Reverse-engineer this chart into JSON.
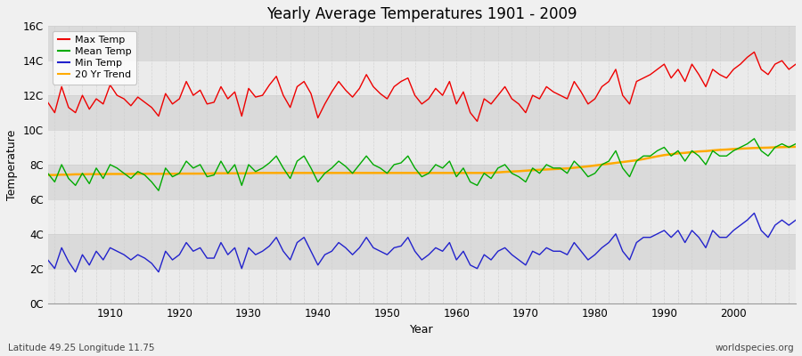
{
  "title": "Yearly Average Temperatures 1901 - 2009",
  "xlabel": "Year",
  "ylabel": "Temperature",
  "yticks": [
    "0C",
    "2C",
    "4C",
    "6C",
    "8C",
    "10C",
    "12C",
    "14C",
    "16C"
  ],
  "ytick_vals": [
    0,
    2,
    4,
    6,
    8,
    10,
    12,
    14,
    16
  ],
  "ylim": [
    0,
    16
  ],
  "xlim": [
    1901,
    2009
  ],
  "xticks": [
    1910,
    1920,
    1930,
    1940,
    1950,
    1960,
    1970,
    1980,
    1990,
    2000
  ],
  "color_max": "#ee0000",
  "color_mean": "#00aa00",
  "color_min": "#2222cc",
  "color_trend": "#ffaa00",
  "bg_light": "#ebebeb",
  "bg_dark": "#dadada",
  "bg_figure": "#f0f0f0",
  "grid_color": "#cccccc",
  "footnote_left": "Latitude 49.25 Longitude 11.75",
  "footnote_right": "worldspecies.org",
  "legend_labels": [
    "Max Temp",
    "Mean Temp",
    "Min Temp",
    "20 Yr Trend"
  ],
  "years": [
    1901,
    1902,
    1903,
    1904,
    1905,
    1906,
    1907,
    1908,
    1909,
    1910,
    1911,
    1912,
    1913,
    1914,
    1915,
    1916,
    1917,
    1918,
    1919,
    1920,
    1921,
    1922,
    1923,
    1924,
    1925,
    1926,
    1927,
    1928,
    1929,
    1930,
    1931,
    1932,
    1933,
    1934,
    1935,
    1936,
    1937,
    1938,
    1939,
    1940,
    1941,
    1942,
    1943,
    1944,
    1945,
    1946,
    1947,
    1948,
    1949,
    1950,
    1951,
    1952,
    1953,
    1954,
    1955,
    1956,
    1957,
    1958,
    1959,
    1960,
    1961,
    1962,
    1963,
    1964,
    1965,
    1966,
    1967,
    1968,
    1969,
    1970,
    1971,
    1972,
    1973,
    1974,
    1975,
    1976,
    1977,
    1978,
    1979,
    1980,
    1981,
    1982,
    1983,
    1984,
    1985,
    1986,
    1987,
    1988,
    1989,
    1990,
    1991,
    1992,
    1993,
    1994,
    1995,
    1996,
    1997,
    1998,
    1999,
    2000,
    2001,
    2002,
    2003,
    2004,
    2005,
    2006,
    2007,
    2008,
    2009
  ],
  "max_temp": [
    11.6,
    11.0,
    12.5,
    11.3,
    11.0,
    12.0,
    11.2,
    11.8,
    11.5,
    12.6,
    12.0,
    11.8,
    11.4,
    11.9,
    11.6,
    11.3,
    10.8,
    12.1,
    11.5,
    11.8,
    12.8,
    12.0,
    12.3,
    11.5,
    11.6,
    12.5,
    11.8,
    12.2,
    10.8,
    12.4,
    11.9,
    12.0,
    12.6,
    13.1,
    12.0,
    11.3,
    12.5,
    12.8,
    12.1,
    10.7,
    11.5,
    12.2,
    12.8,
    12.3,
    11.9,
    12.4,
    13.2,
    12.5,
    12.1,
    11.8,
    12.5,
    12.8,
    13.0,
    12.0,
    11.5,
    11.8,
    12.4,
    12.0,
    12.8,
    11.5,
    12.2,
    11.0,
    10.5,
    11.8,
    11.5,
    12.0,
    12.5,
    11.8,
    11.5,
    11.0,
    12.0,
    11.8,
    12.5,
    12.2,
    12.0,
    11.8,
    12.8,
    12.2,
    11.5,
    11.8,
    12.5,
    12.8,
    13.5,
    12.0,
    11.5,
    12.8,
    13.0,
    13.2,
    13.5,
    13.8,
    13.0,
    13.5,
    12.8,
    13.8,
    13.2,
    12.5,
    13.5,
    13.2,
    13.0,
    13.5,
    13.8,
    14.2,
    14.5,
    13.5,
    13.2,
    13.8,
    14.0,
    13.5,
    13.8
  ],
  "mean_temp": [
    7.5,
    7.0,
    8.0,
    7.2,
    6.8,
    7.5,
    6.9,
    7.8,
    7.2,
    8.0,
    7.8,
    7.5,
    7.2,
    7.6,
    7.4,
    7.0,
    6.5,
    7.8,
    7.3,
    7.5,
    8.2,
    7.8,
    8.0,
    7.3,
    7.4,
    8.2,
    7.5,
    8.0,
    6.8,
    8.0,
    7.6,
    7.8,
    8.1,
    8.5,
    7.8,
    7.2,
    8.2,
    8.5,
    7.8,
    7.0,
    7.5,
    7.8,
    8.2,
    7.9,
    7.5,
    8.0,
    8.5,
    8.0,
    7.8,
    7.5,
    8.0,
    8.1,
    8.5,
    7.8,
    7.3,
    7.5,
    8.0,
    7.8,
    8.2,
    7.3,
    7.8,
    7.0,
    6.8,
    7.5,
    7.2,
    7.8,
    8.0,
    7.5,
    7.3,
    7.0,
    7.8,
    7.5,
    8.0,
    7.8,
    7.8,
    7.5,
    8.2,
    7.8,
    7.3,
    7.5,
    8.0,
    8.2,
    8.8,
    7.8,
    7.3,
    8.2,
    8.5,
    8.5,
    8.8,
    9.0,
    8.5,
    8.8,
    8.2,
    8.8,
    8.5,
    8.0,
    8.8,
    8.5,
    8.5,
    8.8,
    9.0,
    9.2,
    9.5,
    8.8,
    8.5,
    9.0,
    9.2,
    9.0,
    9.2
  ],
  "min_temp": [
    2.5,
    2.0,
    3.2,
    2.4,
    1.8,
    2.8,
    2.2,
    3.0,
    2.5,
    3.2,
    3.0,
    2.8,
    2.5,
    2.8,
    2.6,
    2.3,
    1.8,
    3.0,
    2.5,
    2.8,
    3.5,
    3.0,
    3.2,
    2.6,
    2.6,
    3.5,
    2.8,
    3.2,
    2.0,
    3.2,
    2.8,
    3.0,
    3.3,
    3.8,
    3.0,
    2.5,
    3.5,
    3.8,
    3.0,
    2.2,
    2.8,
    3.0,
    3.5,
    3.2,
    2.8,
    3.2,
    3.8,
    3.2,
    3.0,
    2.8,
    3.2,
    3.3,
    3.8,
    3.0,
    2.5,
    2.8,
    3.2,
    3.0,
    3.5,
    2.5,
    3.0,
    2.2,
    2.0,
    2.8,
    2.5,
    3.0,
    3.2,
    2.8,
    2.5,
    2.2,
    3.0,
    2.8,
    3.2,
    3.0,
    3.0,
    2.8,
    3.5,
    3.0,
    2.5,
    2.8,
    3.2,
    3.5,
    4.0,
    3.0,
    2.5,
    3.5,
    3.8,
    3.8,
    4.0,
    4.2,
    3.8,
    4.2,
    3.5,
    4.2,
    3.8,
    3.2,
    4.2,
    3.8,
    3.8,
    4.2,
    4.5,
    4.8,
    5.2,
    4.2,
    3.8,
    4.5,
    4.8,
    4.5,
    4.8
  ],
  "trend_mean": [
    7.4,
    7.4,
    7.42,
    7.42,
    7.44,
    7.44,
    7.45,
    7.45,
    7.45,
    7.46,
    7.46,
    7.46,
    7.46,
    7.47,
    7.47,
    7.47,
    7.47,
    7.47,
    7.47,
    7.48,
    7.48,
    7.48,
    7.48,
    7.48,
    7.5,
    7.5,
    7.5,
    7.5,
    7.5,
    7.5,
    7.52,
    7.52,
    7.52,
    7.52,
    7.52,
    7.52,
    7.52,
    7.52,
    7.52,
    7.52,
    7.52,
    7.52,
    7.52,
    7.52,
    7.52,
    7.52,
    7.52,
    7.52,
    7.52,
    7.52,
    7.52,
    7.52,
    7.52,
    7.52,
    7.52,
    7.52,
    7.52,
    7.52,
    7.52,
    7.52,
    7.52,
    7.52,
    7.52,
    7.52,
    7.52,
    7.55,
    7.58,
    7.6,
    7.62,
    7.65,
    7.68,
    7.7,
    7.72,
    7.74,
    7.76,
    7.78,
    7.82,
    7.86,
    7.9,
    7.95,
    8.0,
    8.05,
    8.1,
    8.15,
    8.2,
    8.25,
    8.32,
    8.4,
    8.48,
    8.55,
    8.6,
    8.65,
    8.68,
    8.72,
    8.76,
    8.78,
    8.82,
    8.85,
    8.87,
    8.9,
    8.92,
    8.94,
    8.96,
    8.97,
    8.98,
    9.0,
    9.01,
    9.02,
    9.03
  ]
}
